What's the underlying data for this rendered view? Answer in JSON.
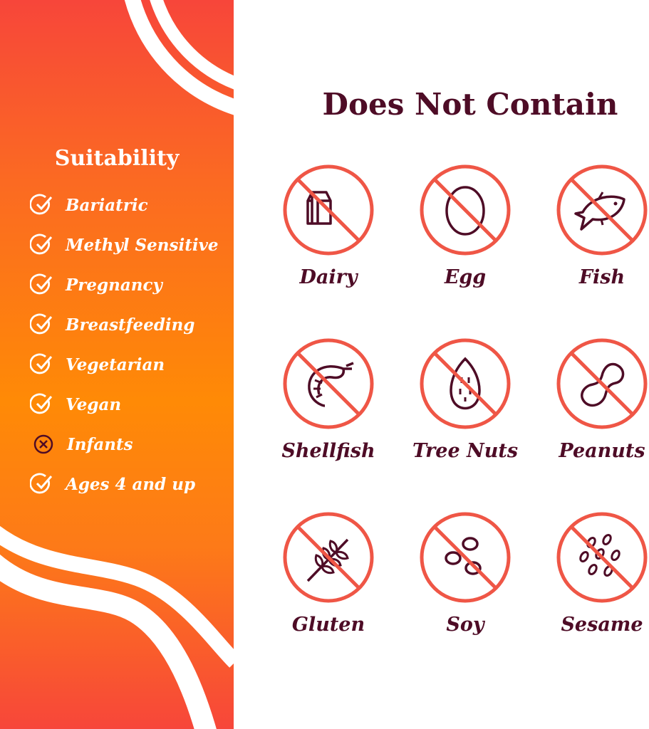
{
  "suitability": {
    "title": "Suitability",
    "items": [
      {
        "label": "Bariatric",
        "status": "check"
      },
      {
        "label": "Methyl Sensitive",
        "status": "check"
      },
      {
        "label": "Pregnancy",
        "status": "check"
      },
      {
        "label": "Breastfeeding",
        "status": "check"
      },
      {
        "label": "Vegetarian",
        "status": "check"
      },
      {
        "label": "Vegan",
        "status": "check"
      },
      {
        "label": "Infants",
        "status": "cross"
      },
      {
        "label": "Ages 4 and up",
        "status": "check"
      }
    ]
  },
  "allergens": {
    "title": "Does Not Contain",
    "items": [
      {
        "label": "Dairy",
        "icon": "milk-carton-icon"
      },
      {
        "label": "Egg",
        "icon": "egg-icon"
      },
      {
        "label": "Fish",
        "icon": "fish-icon"
      },
      {
        "label": "Shellfish",
        "icon": "shrimp-icon"
      },
      {
        "label": "Tree Nuts",
        "icon": "almond-icon"
      },
      {
        "label": "Peanuts",
        "icon": "peanut-icon"
      },
      {
        "label": "Gluten",
        "icon": "wheat-icon"
      },
      {
        "label": "Soy",
        "icon": "soybean-icon"
      },
      {
        "label": "Sesame",
        "icon": "sesame-icon"
      }
    ]
  },
  "colors": {
    "prohibit": "#ef5646",
    "text_dark": "#4e0c26",
    "gradient_top": "#f7463a",
    "gradient_mid": "#ff8a06"
  }
}
